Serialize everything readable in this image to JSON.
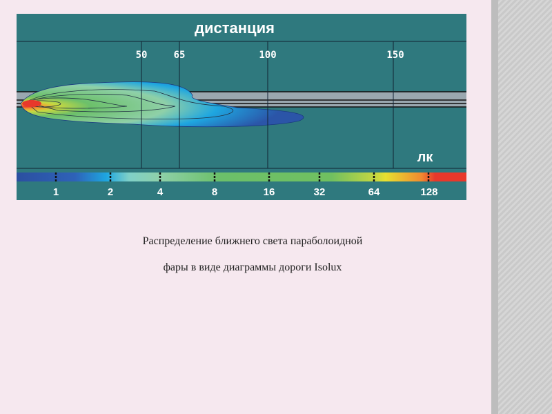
{
  "figure": {
    "title": "дистанция",
    "distance_ticks": [
      "50",
      "65",
      "100",
      "150"
    ],
    "unit": "лк",
    "legend_ticks": [
      "1",
      "2",
      "4",
      "8",
      "16",
      "32",
      "64",
      "128"
    ],
    "colors": {
      "background": "#2f797e",
      "road": "#9aa8b0",
      "low": "#2b55a8",
      "mid": "#6cc06a",
      "high": "#e8382b"
    }
  },
  "caption": {
    "line1": "Распределение ближнего света параболоидной",
    "line2": "фары в виде диаграммы дороги Isolux"
  }
}
